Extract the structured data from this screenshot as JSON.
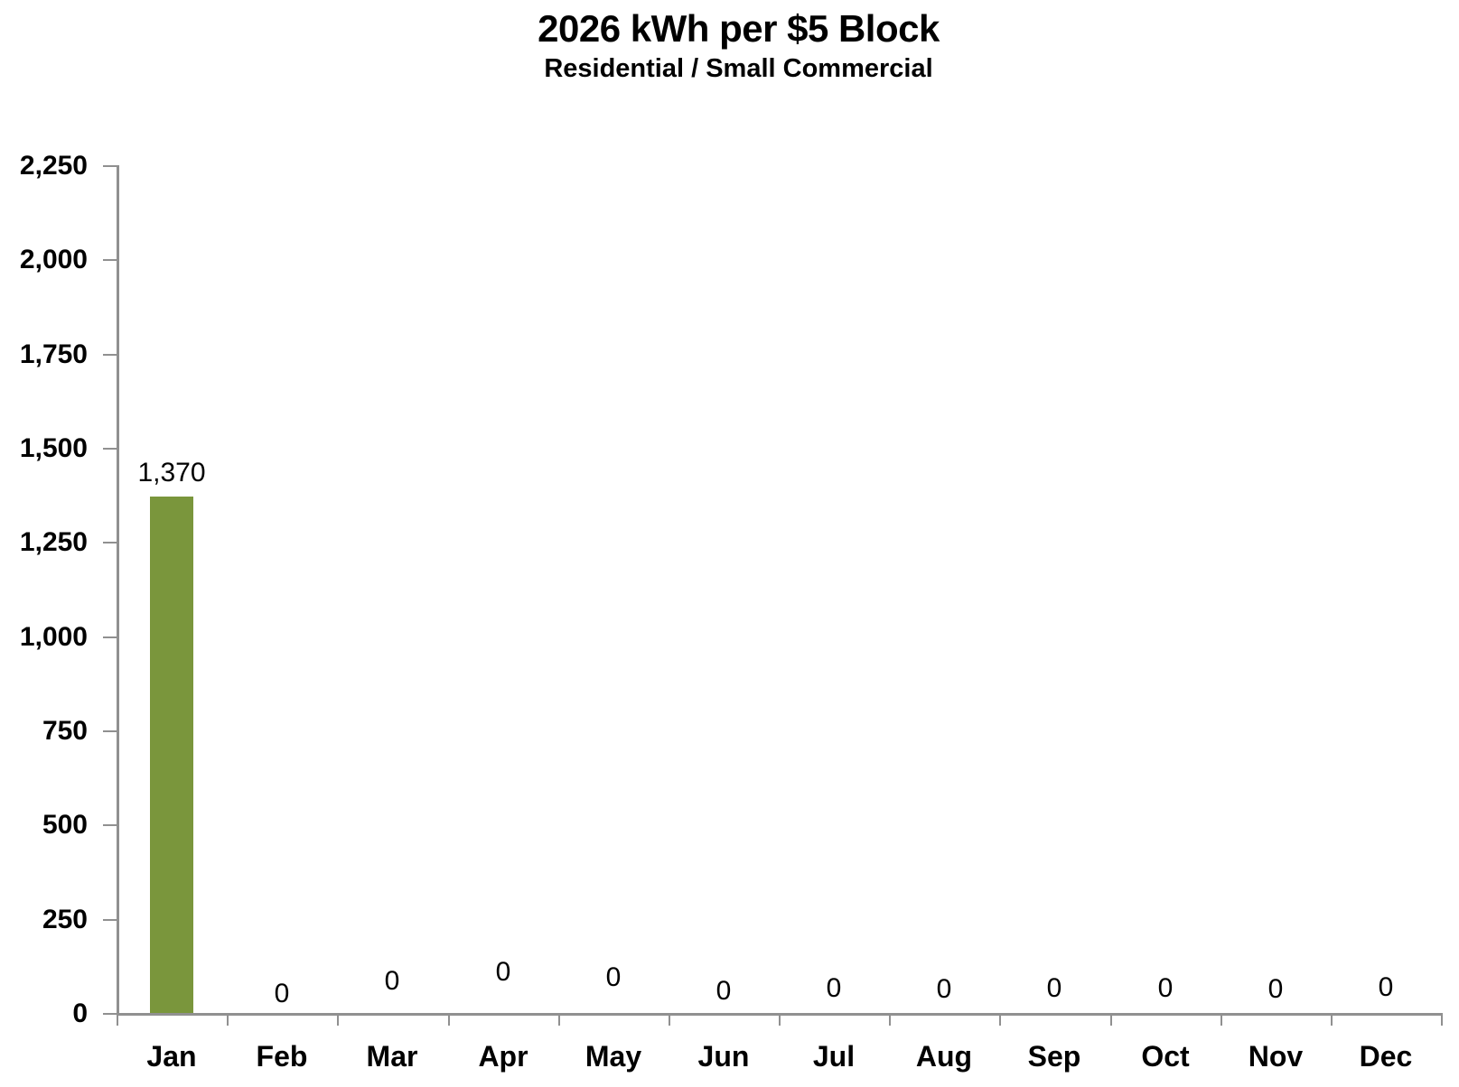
{
  "chart_data": {
    "type": "bar",
    "title": "2026 kWh per $5 Block",
    "subtitle": "Residential / Small Commercial",
    "categories": [
      "Jan",
      "Feb",
      "Mar",
      "Apr",
      "May",
      "Jun",
      "Jul",
      "Aug",
      "Sep",
      "Oct",
      "Nov",
      "Dec"
    ],
    "values": [
      1370,
      0,
      0,
      0,
      0,
      0,
      0,
      0,
      0,
      0,
      0,
      0
    ],
    "data_labels": [
      "1,370",
      "0",
      "0",
      "0",
      "0",
      "0",
      "0",
      "0",
      "0",
      "0",
      "0",
      "0"
    ],
    "series_name": "kWh per $5 Block",
    "xlabel": "",
    "ylabel": "",
    "ylim": [
      0,
      2250
    ],
    "ytick_step": 250,
    "ytick_labels": [
      "2,250",
      "2,000",
      "1,750",
      "1,500",
      "1,250",
      "1,000",
      "750",
      "500",
      "250",
      "0"
    ],
    "grid": false,
    "legend": "none",
    "bar_color": "#7A963C",
    "axis_color": "#909090",
    "text_color": "#000000"
  }
}
